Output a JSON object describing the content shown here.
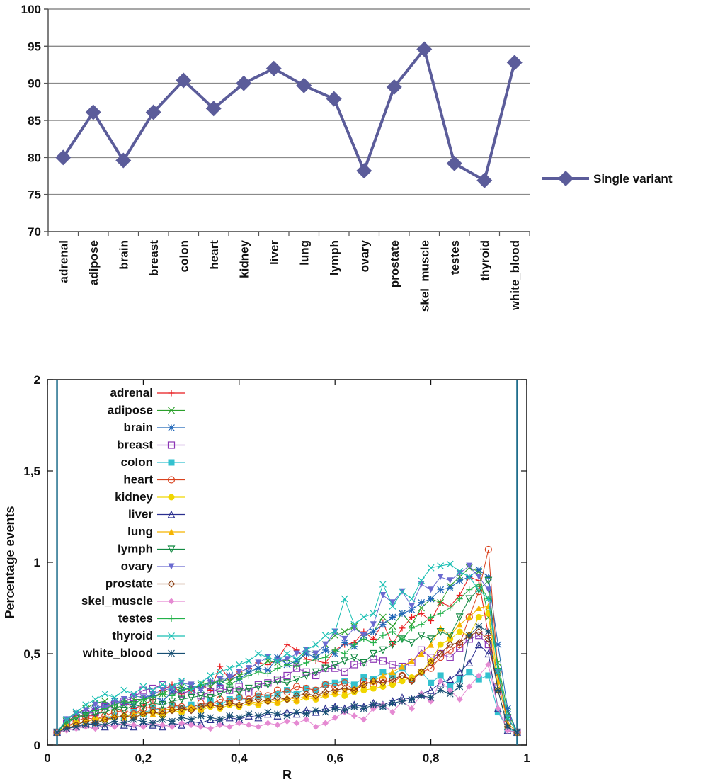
{
  "chart_data": [
    {
      "type": "line",
      "title": "",
      "xlabel": "",
      "ylabel": "",
      "ylim": [
        70,
        100
      ],
      "yticks": [
        70,
        75,
        80,
        85,
        90,
        95,
        100
      ],
      "grid": true,
      "legend_position": "right",
      "categories": [
        "adrenal",
        "adipose",
        "brain",
        "breast",
        "colon",
        "heart",
        "kidney",
        "liver",
        "lung",
        "lymph",
        "ovary",
        "prostate",
        "skel_muscle",
        "testes",
        "thyroid",
        "white_blood"
      ],
      "series": [
        {
          "name": "Single variant",
          "color": "#5b5c9a",
          "marker": "diamond",
          "values": [
            80.0,
            86.1,
            79.6,
            86.1,
            90.4,
            86.6,
            90.0,
            92.0,
            89.7,
            87.9,
            78.2,
            89.5,
            94.6,
            79.2,
            76.9,
            92.8
          ]
        }
      ]
    },
    {
      "type": "line",
      "title": "",
      "xlabel": "R",
      "ylabel": "Percentage events",
      "xlim": [
        0,
        1
      ],
      "ylim": [
        0,
        2
      ],
      "xticks": [
        "0",
        "0,2",
        "0,4",
        "0,6",
        "0,8",
        "1"
      ],
      "yticks": [
        "0",
        "0,5",
        "1",
        "1,5",
        "2"
      ],
      "legend_position": "top-left",
      "vertical_lines": [
        0.02,
        0.98
      ],
      "x": [
        0.02,
        0.04,
        0.06,
        0.08,
        0.1,
        0.12,
        0.14,
        0.16,
        0.18,
        0.2,
        0.22,
        0.24,
        0.26,
        0.28,
        0.3,
        0.32,
        0.34,
        0.36,
        0.38,
        0.4,
        0.42,
        0.44,
        0.46,
        0.48,
        0.5,
        0.52,
        0.54,
        0.56,
        0.58,
        0.6,
        0.62,
        0.64,
        0.66,
        0.68,
        0.7,
        0.72,
        0.74,
        0.76,
        0.78,
        0.8,
        0.82,
        0.84,
        0.86,
        0.88,
        0.9,
        0.92,
        0.94,
        0.96,
        0.98
      ],
      "series": [
        {
          "name": "adrenal",
          "color": "#e8191c",
          "marker": "plus",
          "values": [
            0.07,
            0.13,
            0.16,
            0.16,
            0.16,
            0.2,
            0.22,
            0.24,
            0.2,
            0.22,
            0.25,
            0.3,
            0.33,
            0.28,
            0.3,
            0.33,
            0.3,
            0.43,
            0.36,
            0.4,
            0.42,
            0.45,
            0.44,
            0.47,
            0.55,
            0.52,
            0.47,
            0.46,
            0.45,
            0.52,
            0.55,
            0.56,
            0.62,
            0.58,
            0.67,
            0.55,
            0.64,
            0.7,
            0.72,
            0.68,
            0.78,
            0.76,
            0.82,
            0.92,
            0.9,
            0.6,
            0.38,
            0.15,
            0.07
          ]
        },
        {
          "name": "adipose",
          "color": "#2ba02b",
          "marker": "cross",
          "values": [
            0.07,
            0.12,
            0.17,
            0.2,
            0.23,
            0.24,
            0.2,
            0.22,
            0.25,
            0.25,
            0.27,
            0.28,
            0.31,
            0.32,
            0.3,
            0.33,
            0.32,
            0.36,
            0.35,
            0.38,
            0.4,
            0.42,
            0.46,
            0.45,
            0.47,
            0.44,
            0.52,
            0.5,
            0.55,
            0.6,
            0.62,
            0.65,
            0.6,
            0.62,
            0.7,
            0.65,
            0.72,
            0.66,
            0.75,
            0.8,
            0.78,
            0.87,
            0.92,
            0.97,
            0.95,
            0.7,
            0.45,
            0.18,
            0.07
          ]
        },
        {
          "name": "brain",
          "color": "#1f66b8",
          "marker": "star",
          "values": [
            0.07,
            0.14,
            0.18,
            0.17,
            0.2,
            0.22,
            0.24,
            0.23,
            0.22,
            0.26,
            0.27,
            0.24,
            0.29,
            0.3,
            0.32,
            0.31,
            0.35,
            0.33,
            0.38,
            0.36,
            0.4,
            0.42,
            0.41,
            0.48,
            0.44,
            0.46,
            0.5,
            0.48,
            0.52,
            0.5,
            0.56,
            0.54,
            0.6,
            0.62,
            0.66,
            0.7,
            0.72,
            0.74,
            0.78,
            0.8,
            0.85,
            0.86,
            0.9,
            0.92,
            0.96,
            0.92,
            0.55,
            0.2,
            0.07
          ]
        },
        {
          "name": "breast",
          "color": "#8b35b5",
          "marker": "square-open",
          "values": [
            0.07,
            0.12,
            0.15,
            0.17,
            0.18,
            0.21,
            0.22,
            0.24,
            0.26,
            0.3,
            0.31,
            0.33,
            0.3,
            0.28,
            0.3,
            0.27,
            0.29,
            0.31,
            0.3,
            0.32,
            0.29,
            0.33,
            0.34,
            0.36,
            0.38,
            0.42,
            0.4,
            0.38,
            0.42,
            0.42,
            0.4,
            0.44,
            0.45,
            0.47,
            0.46,
            0.44,
            0.43,
            0.45,
            0.52,
            0.48,
            0.5,
            0.48,
            0.53,
            0.58,
            0.6,
            0.55,
            0.32,
            0.15,
            0.07
          ]
        },
        {
          "name": "colon",
          "color": "#33c1cf",
          "marker": "square",
          "values": [
            0.07,
            0.09,
            0.11,
            0.13,
            0.12,
            0.14,
            0.16,
            0.15,
            0.18,
            0.17,
            0.2,
            0.19,
            0.22,
            0.2,
            0.22,
            0.21,
            0.24,
            0.22,
            0.25,
            0.26,
            0.24,
            0.27,
            0.26,
            0.28,
            0.3,
            0.28,
            0.31,
            0.3,
            0.33,
            0.34,
            0.35,
            0.33,
            0.37,
            0.36,
            0.4,
            0.38,
            0.42,
            0.36,
            0.4,
            0.34,
            0.38,
            0.32,
            0.36,
            0.4,
            0.36,
            0.38,
            0.18,
            0.09,
            0.07
          ]
        },
        {
          "name": "heart",
          "color": "#d9431f",
          "marker": "circle-open",
          "values": [
            0.07,
            0.1,
            0.13,
            0.15,
            0.14,
            0.16,
            0.18,
            0.19,
            0.17,
            0.2,
            0.21,
            0.19,
            0.22,
            0.21,
            0.2,
            0.23,
            0.22,
            0.25,
            0.24,
            0.26,
            0.25,
            0.28,
            0.27,
            0.3,
            0.29,
            0.32,
            0.31,
            0.3,
            0.33,
            0.32,
            0.34,
            0.3,
            0.35,
            0.33,
            0.36,
            0.34,
            0.38,
            0.36,
            0.4,
            0.42,
            0.48,
            0.52,
            0.55,
            0.7,
            0.84,
            1.07,
            0.4,
            0.12,
            0.07
          ]
        },
        {
          "name": "kidney",
          "color": "#f0d600",
          "marker": "circle",
          "values": [
            0.07,
            0.1,
            0.12,
            0.13,
            0.14,
            0.13,
            0.15,
            0.16,
            0.15,
            0.17,
            0.18,
            0.16,
            0.19,
            0.18,
            0.2,
            0.19,
            0.21,
            0.2,
            0.22,
            0.21,
            0.23,
            0.22,
            0.24,
            0.23,
            0.25,
            0.24,
            0.26,
            0.25,
            0.27,
            0.28,
            0.27,
            0.29,
            0.3,
            0.31,
            0.32,
            0.33,
            0.35,
            0.37,
            0.4,
            0.46,
            0.55,
            0.58,
            0.62,
            0.6,
            0.7,
            0.72,
            0.3,
            0.1,
            0.07
          ]
        },
        {
          "name": "liver",
          "color": "#2a2e8f",
          "marker": "triangle-open",
          "values": [
            0.07,
            0.09,
            0.1,
            0.12,
            0.11,
            0.1,
            0.12,
            0.11,
            0.1,
            0.12,
            0.11,
            0.1,
            0.12,
            0.11,
            0.13,
            0.12,
            0.14,
            0.13,
            0.15,
            0.14,
            0.16,
            0.15,
            0.17,
            0.16,
            0.18,
            0.17,
            0.19,
            0.18,
            0.2,
            0.21,
            0.2,
            0.22,
            0.21,
            0.23,
            0.22,
            0.24,
            0.26,
            0.25,
            0.28,
            0.3,
            0.34,
            0.36,
            0.4,
            0.45,
            0.55,
            0.5,
            0.2,
            0.08,
            0.07
          ]
        },
        {
          "name": "lung",
          "color": "#f5b400",
          "marker": "triangle",
          "values": [
            0.07,
            0.1,
            0.12,
            0.13,
            0.14,
            0.15,
            0.16,
            0.15,
            0.17,
            0.18,
            0.17,
            0.19,
            0.2,
            0.19,
            0.21,
            0.2,
            0.22,
            0.21,
            0.23,
            0.22,
            0.24,
            0.23,
            0.25,
            0.24,
            0.26,
            0.25,
            0.27,
            0.26,
            0.28,
            0.29,
            0.3,
            0.31,
            0.33,
            0.35,
            0.38,
            0.4,
            0.43,
            0.46,
            0.5,
            0.55,
            0.64,
            0.6,
            0.66,
            0.7,
            0.75,
            0.76,
            0.35,
            0.12,
            0.07
          ]
        },
        {
          "name": "lymph",
          "color": "#138a42",
          "marker": "triangle-down-open",
          "values": [
            0.07,
            0.13,
            0.15,
            0.16,
            0.17,
            0.18,
            0.2,
            0.19,
            0.22,
            0.21,
            0.23,
            0.22,
            0.24,
            0.25,
            0.26,
            0.27,
            0.26,
            0.28,
            0.3,
            0.29,
            0.31,
            0.32,
            0.33,
            0.35,
            0.34,
            0.36,
            0.38,
            0.4,
            0.42,
            0.44,
            0.46,
            0.48,
            0.45,
            0.5,
            0.52,
            0.55,
            0.58,
            0.56,
            0.6,
            0.58,
            0.62,
            0.6,
            0.7,
            0.8,
            0.85,
            0.9,
            0.4,
            0.15,
            0.07
          ]
        },
        {
          "name": "ovary",
          "color": "#6a6ad0",
          "marker": "triangle-down",
          "values": [
            0.07,
            0.14,
            0.17,
            0.19,
            0.22,
            0.2,
            0.23,
            0.25,
            0.27,
            0.26,
            0.28,
            0.3,
            0.31,
            0.34,
            0.33,
            0.3,
            0.34,
            0.36,
            0.37,
            0.4,
            0.42,
            0.45,
            0.48,
            0.46,
            0.47,
            0.5,
            0.52,
            0.5,
            0.55,
            0.62,
            0.58,
            0.64,
            0.6,
            0.66,
            0.82,
            0.78,
            0.84,
            0.76,
            0.88,
            0.85,
            0.92,
            0.9,
            0.94,
            0.98,
            0.92,
            0.85,
            0.4,
            0.15,
            0.07
          ]
        },
        {
          "name": "prostate",
          "color": "#8a3b0e",
          "marker": "diamond-open",
          "values": [
            0.07,
            0.09,
            0.11,
            0.13,
            0.12,
            0.14,
            0.15,
            0.16,
            0.15,
            0.17,
            0.18,
            0.17,
            0.19,
            0.2,
            0.19,
            0.21,
            0.22,
            0.21,
            0.23,
            0.22,
            0.24,
            0.25,
            0.24,
            0.26,
            0.25,
            0.27,
            0.28,
            0.27,
            0.29,
            0.3,
            0.31,
            0.3,
            0.33,
            0.35,
            0.34,
            0.36,
            0.38,
            0.35,
            0.4,
            0.45,
            0.5,
            0.55,
            0.56,
            0.6,
            0.62,
            0.58,
            0.3,
            0.1,
            0.07
          ]
        },
        {
          "name": "skel_muscle",
          "color": "#e58ad2",
          "marker": "diamond",
          "values": [
            0.07,
            0.08,
            0.09,
            0.1,
            0.09,
            0.11,
            0.1,
            0.12,
            0.11,
            0.1,
            0.12,
            0.11,
            0.1,
            0.12,
            0.11,
            0.1,
            0.09,
            0.11,
            0.1,
            0.12,
            0.11,
            0.1,
            0.12,
            0.11,
            0.13,
            0.12,
            0.14,
            0.1,
            0.12,
            0.15,
            0.18,
            0.16,
            0.14,
            0.2,
            0.22,
            0.18,
            0.24,
            0.2,
            0.28,
            0.24,
            0.35,
            0.3,
            0.25,
            0.32,
            0.38,
            0.44,
            0.2,
            0.08,
            0.07
          ]
        },
        {
          "name": "testes",
          "color": "#23b14a",
          "marker": "plus",
          "values": [
            0.07,
            0.12,
            0.15,
            0.17,
            0.19,
            0.2,
            0.22,
            0.24,
            0.23,
            0.25,
            0.26,
            0.28,
            0.27,
            0.3,
            0.31,
            0.33,
            0.34,
            0.35,
            0.33,
            0.36,
            0.38,
            0.4,
            0.39,
            0.42,
            0.44,
            0.43,
            0.45,
            0.47,
            0.48,
            0.52,
            0.5,
            0.55,
            0.58,
            0.56,
            0.6,
            0.62,
            0.58,
            0.64,
            0.66,
            0.7,
            0.72,
            0.75,
            0.8,
            0.85,
            0.88,
            0.8,
            0.42,
            0.15,
            0.07
          ]
        },
        {
          "name": "thyroid",
          "color": "#1abfb3",
          "marker": "cross",
          "values": [
            0.07,
            0.14,
            0.18,
            0.22,
            0.25,
            0.28,
            0.26,
            0.3,
            0.28,
            0.32,
            0.3,
            0.33,
            0.32,
            0.35,
            0.3,
            0.34,
            0.38,
            0.4,
            0.42,
            0.44,
            0.46,
            0.5,
            0.48,
            0.46,
            0.5,
            0.47,
            0.52,
            0.55,
            0.6,
            0.62,
            0.8,
            0.66,
            0.7,
            0.72,
            0.88,
            0.76,
            0.84,
            0.8,
            0.9,
            0.97,
            0.98,
            0.99,
            0.95,
            0.92,
            0.85,
            0.8,
            0.4,
            0.15,
            0.07
          ]
        },
        {
          "name": "white_blood",
          "color": "#174f73",
          "marker": "star",
          "values": [
            0.07,
            0.09,
            0.1,
            0.11,
            0.12,
            0.11,
            0.13,
            0.12,
            0.14,
            0.13,
            0.12,
            0.14,
            0.13,
            0.15,
            0.14,
            0.16,
            0.15,
            0.14,
            0.16,
            0.15,
            0.17,
            0.16,
            0.18,
            0.17,
            0.16,
            0.18,
            0.17,
            0.19,
            0.18,
            0.2,
            0.19,
            0.21,
            0.2,
            0.22,
            0.21,
            0.23,
            0.24,
            0.25,
            0.27,
            0.26,
            0.3,
            0.28,
            0.32,
            0.6,
            0.65,
            0.62,
            0.3,
            0.1,
            0.07
          ]
        }
      ]
    }
  ]
}
